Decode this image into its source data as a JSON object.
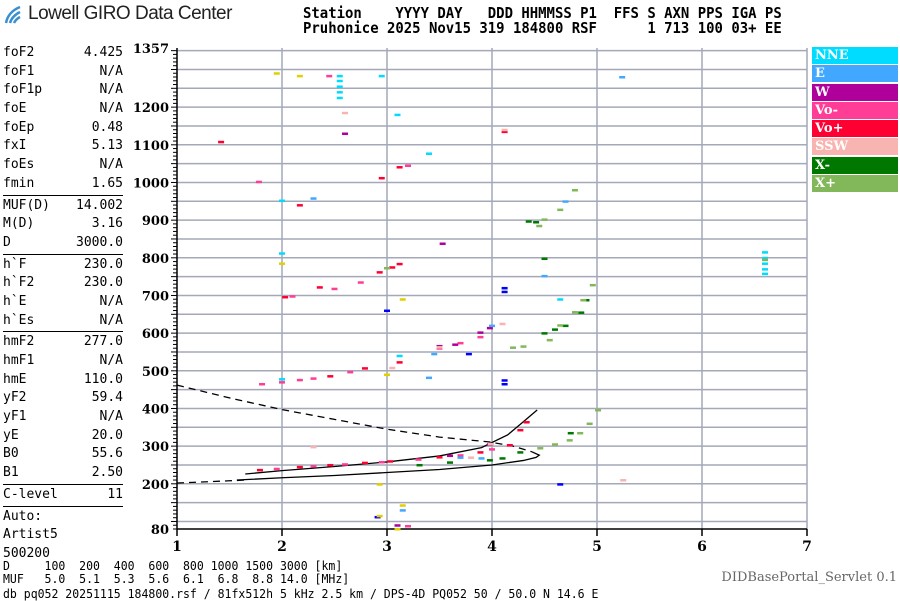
{
  "header": {
    "brand": "Lowell GIRO Data Center",
    "line1": "Station    YYYY DAY   DDD HHMMSS P1  FFS S AXN PPS IGA PS",
    "line2": "Pruhonice 2025 Nov15 319 184800 RSF      1 713 100 03+ EE"
  },
  "params": {
    "group1": [
      [
        "foF2",
        "4.425"
      ],
      [
        "foF1",
        "N/A"
      ],
      [
        "foF1p",
        "N/A"
      ],
      [
        "foE",
        "N/A"
      ],
      [
        "foEp",
        "0.48"
      ],
      [
        "fxI",
        "5.13"
      ],
      [
        "foEs",
        "N/A"
      ],
      [
        "fmin",
        "1.65"
      ]
    ],
    "group2": [
      [
        "MUF(D)",
        "14.002"
      ],
      [
        "M(D)",
        "3.16"
      ],
      [
        "D",
        "3000.0"
      ]
    ],
    "group3": [
      [
        "h`F",
        "230.0"
      ],
      [
        "h`F2",
        "230.0"
      ],
      [
        "h`E",
        "N/A"
      ],
      [
        "h`Es",
        "N/A"
      ]
    ],
    "group4": [
      [
        "hmF2",
        "277.0"
      ],
      [
        "hmF1",
        "N/A"
      ],
      [
        "hmE",
        "110.0"
      ],
      [
        "yF2",
        "59.4"
      ],
      [
        "yF1",
        "N/A"
      ],
      [
        "yE",
        "20.0"
      ],
      [
        "B0",
        "55.6"
      ],
      [
        "B1",
        "2.50"
      ]
    ],
    "group5": [
      [
        "C-level",
        "11"
      ]
    ],
    "auto": [
      "Auto:",
      "Artist5",
      "500200"
    ]
  },
  "footer": {
    "d_row": "D     100  200  400  600  800 1000 1500 3000 [km]",
    "muf_row": "MUF   5.0  5.1  5.3  5.6  6.1  6.8  8.8 14.0 [MHz]",
    "info": "db pq052 20251115 184800.rsf / 81fx512h 5 kHz 2.5 km / DPS-4D PQ052 50 / 50.0 N 14.6 E",
    "servlet": "DIDBasePortal_Servlet 0.1"
  },
  "legend": [
    {
      "label": "NNE",
      "color": "#00dcff"
    },
    {
      "label": "E",
      "color": "#42a8ff"
    },
    {
      "label": "W",
      "color": "#b0009c"
    },
    {
      "label": "Vo-",
      "color": "#ff3c96"
    },
    {
      "label": "Vo+",
      "color": "#ff0032"
    },
    {
      "label": "SSW",
      "color": "#f8b4b0"
    },
    {
      "label": "X-",
      "color": "#007800"
    },
    {
      "label": "X+",
      "color": "#82b85a"
    }
  ],
  "chart_data": {
    "type": "scatter",
    "xlim": [
      1,
      7
    ],
    "ylim": [
      80,
      1357
    ],
    "x_ticks": [
      "1",
      "2",
      "3",
      "4",
      "5",
      "6",
      "7"
    ],
    "y_ticks": [
      "1357",
      "1200",
      "1100",
      "1000",
      "900",
      "800",
      "700",
      "600",
      "500",
      "400",
      "300",
      "200",
      "80"
    ],
    "grid": true,
    "legend_placement": "right",
    "series": [
      {
        "name": "Vo+",
        "color": "#ff0032",
        "points": [
          [
            1.79,
            237
          ],
          [
            2.17,
            245
          ],
          [
            2.46,
            250
          ],
          [
            2.79,
            256
          ],
          [
            3.03,
            260
          ],
          [
            3.5,
            271
          ],
          [
            3.89,
            284
          ],
          [
            4.17,
            303
          ],
          [
            4.27,
            343
          ],
          [
            4.33,
            364
          ],
          [
            2.46,
            486
          ],
          [
            2.79,
            507
          ],
          [
            3.12,
            523
          ],
          [
            2.03,
            696
          ],
          [
            2.36,
            722
          ],
          [
            2.93,
            762
          ],
          [
            3.12,
            784
          ],
          [
            3.05,
            775
          ],
          [
            3.12,
            1041
          ],
          [
            2.95,
            1012
          ],
          [
            1.42,
            1108
          ],
          [
            2.17,
            940
          ],
          [
            4.12,
            1135
          ]
        ]
      },
      {
        "name": "Vo-",
        "color": "#ff3c96",
        "points": [
          [
            1.95,
            240
          ],
          [
            2.3,
            247
          ],
          [
            2.6,
            252
          ],
          [
            2.95,
            258
          ],
          [
            3.3,
            265
          ],
          [
            3.7,
            276
          ],
          [
            4.0,
            292
          ],
          [
            1.81,
            465
          ],
          [
            2.0,
            470
          ],
          [
            2.17,
            476
          ],
          [
            2.3,
            480
          ],
          [
            2.65,
            497
          ],
          [
            3.5,
            560
          ],
          [
            3.7,
            574
          ],
          [
            3.89,
            590
          ],
          [
            2.1,
            698
          ],
          [
            2.5,
            718
          ],
          [
            2.75,
            735
          ],
          [
            1.78,
            1002
          ],
          [
            3.2,
            1045
          ],
          [
            2.45,
            1283
          ],
          [
            3.2,
            88
          ]
        ]
      },
      {
        "name": "W",
        "color": "#b0009c",
        "points": [
          [
            3.6,
            275
          ],
          [
            3.98,
            305
          ],
          [
            3.98,
            614
          ],
          [
            3.89,
            602
          ],
          [
            3.5,
            566
          ],
          [
            3.65,
            570
          ],
          [
            3.53,
            838
          ],
          [
            2.6,
            1130
          ],
          [
            3.1,
            90
          ]
        ]
      },
      {
        "name": "NNE",
        "color": "#00dcff",
        "points": [
          [
            2.55,
            1225
          ],
          [
            2.55,
            1240
          ],
          [
            2.55,
            1255
          ],
          [
            2.55,
            1270
          ],
          [
            2.55,
            1283
          ],
          [
            2.0,
            478
          ],
          [
            2.0,
            952
          ],
          [
            2.0,
            812
          ],
          [
            6.6,
            758
          ],
          [
            6.6,
            770
          ],
          [
            6.6,
            785
          ],
          [
            6.6,
            800
          ],
          [
            6.6,
            815
          ],
          [
            3.12,
            540
          ],
          [
            3.1,
            1180
          ],
          [
            3.4,
            1077
          ],
          [
            4.65,
            690
          ],
          [
            2.95,
            1283
          ]
        ]
      },
      {
        "name": "E",
        "color": "#42a8ff",
        "points": [
          [
            5.24,
            1280
          ],
          [
            3.4,
            482
          ],
          [
            3.7,
            270
          ],
          [
            3.9,
            268
          ],
          [
            4.0,
            620
          ],
          [
            3.45,
            545
          ],
          [
            2.3,
            958
          ],
          [
            3.15,
            130
          ],
          [
            4.5,
            752
          ],
          [
            4.7,
            950
          ]
        ]
      },
      {
        "name": "SSW",
        "color": "#f8b4b0",
        "points": [
          [
            3.8,
            270
          ],
          [
            3.99,
            306
          ],
          [
            4.1,
            625
          ],
          [
            3.5,
            563
          ],
          [
            3.05,
            508
          ],
          [
            2.3,
            298
          ],
          [
            2.6,
            1185
          ],
          [
            4.12,
            1140
          ],
          [
            5.25,
            210
          ]
        ]
      },
      {
        "name": "X-",
        "color": "#007800",
        "points": [
          [
            3.31,
            250
          ],
          [
            3.6,
            257
          ],
          [
            3.98,
            263
          ],
          [
            4.27,
            284
          ],
          [
            4.1,
            268
          ],
          [
            4.5,
            600
          ],
          [
            4.6,
            610
          ],
          [
            4.7,
            620
          ],
          [
            4.85,
            655
          ],
          [
            4.9,
            688
          ],
          [
            4.35,
            897
          ],
          [
            4.5,
            798
          ],
          [
            4.42,
            895
          ],
          [
            4.75,
            335
          ]
        ]
      },
      {
        "name": "X+",
        "color": "#82b85a",
        "points": [
          [
            4.46,
            295
          ],
          [
            4.6,
            305
          ],
          [
            4.74,
            316
          ],
          [
            4.84,
            335
          ],
          [
            4.93,
            360
          ],
          [
            5.01,
            396
          ],
          [
            4.3,
            565
          ],
          [
            4.2,
            562
          ],
          [
            4.55,
            582
          ],
          [
            4.65,
            621
          ],
          [
            4.79,
            656
          ],
          [
            4.87,
            688
          ],
          [
            4.96,
            728
          ],
          [
            4.45,
            885
          ],
          [
            4.5,
            902
          ],
          [
            4.79,
            980
          ],
          [
            4.65,
            928
          ],
          [
            3.0,
            773
          ],
          [
            6.6,
            795
          ]
        ]
      },
      {
        "color": "#0000ff",
        "points": [
          [
            4.12,
            475
          ],
          [
            4.12,
            465
          ],
          [
            4.12,
            720
          ],
          [
            4.12,
            710
          ],
          [
            4.65,
            199
          ],
          [
            2.91,
            112
          ],
          [
            3.78,
            545
          ],
          [
            3.0,
            660
          ]
        ]
      },
      {
        "color": "#e0d000",
        "points": [
          [
            2.93,
            199
          ],
          [
            2.93,
            115
          ],
          [
            3.15,
            143
          ],
          [
            3.15,
            690
          ],
          [
            3.0,
            490
          ],
          [
            2.17,
            1283
          ],
          [
            2.0,
            785
          ],
          [
            1.95,
            1290
          ],
          [
            3.1,
            80
          ]
        ]
      }
    ],
    "model_curves": [
      {
        "style": "solid",
        "points": [
          [
            1.65,
            226
          ],
          [
            2.0,
            235
          ],
          [
            2.5,
            246
          ],
          [
            3.0,
            258
          ],
          [
            3.5,
            274
          ],
          [
            3.9,
            296
          ],
          [
            4.15,
            330
          ],
          [
            4.3,
            365
          ],
          [
            4.43,
            396
          ]
        ]
      },
      {
        "style": "solid",
        "points": [
          [
            1.57,
            210
          ],
          [
            2.0,
            216
          ],
          [
            2.5,
            222
          ],
          [
            3.0,
            230
          ],
          [
            3.5,
            238
          ],
          [
            4.0,
            250
          ],
          [
            4.3,
            262
          ],
          [
            4.42,
            270
          ],
          [
            4.45,
            276
          ],
          [
            4.38,
            285
          ]
        ]
      },
      {
        "style": "dashed",
        "points": [
          [
            1.0,
            202
          ],
          [
            1.5,
            208
          ],
          [
            1.65,
            210
          ]
        ]
      },
      {
        "style": "dashed",
        "points": [
          [
            1.0,
            462
          ],
          [
            1.5,
            428
          ],
          [
            2.0,
            397
          ],
          [
            2.5,
            371
          ],
          [
            3.0,
            345
          ],
          [
            3.5,
            324
          ],
          [
            3.98,
            311
          ],
          [
            4.2,
            300
          ],
          [
            4.38,
            285
          ]
        ]
      }
    ]
  }
}
